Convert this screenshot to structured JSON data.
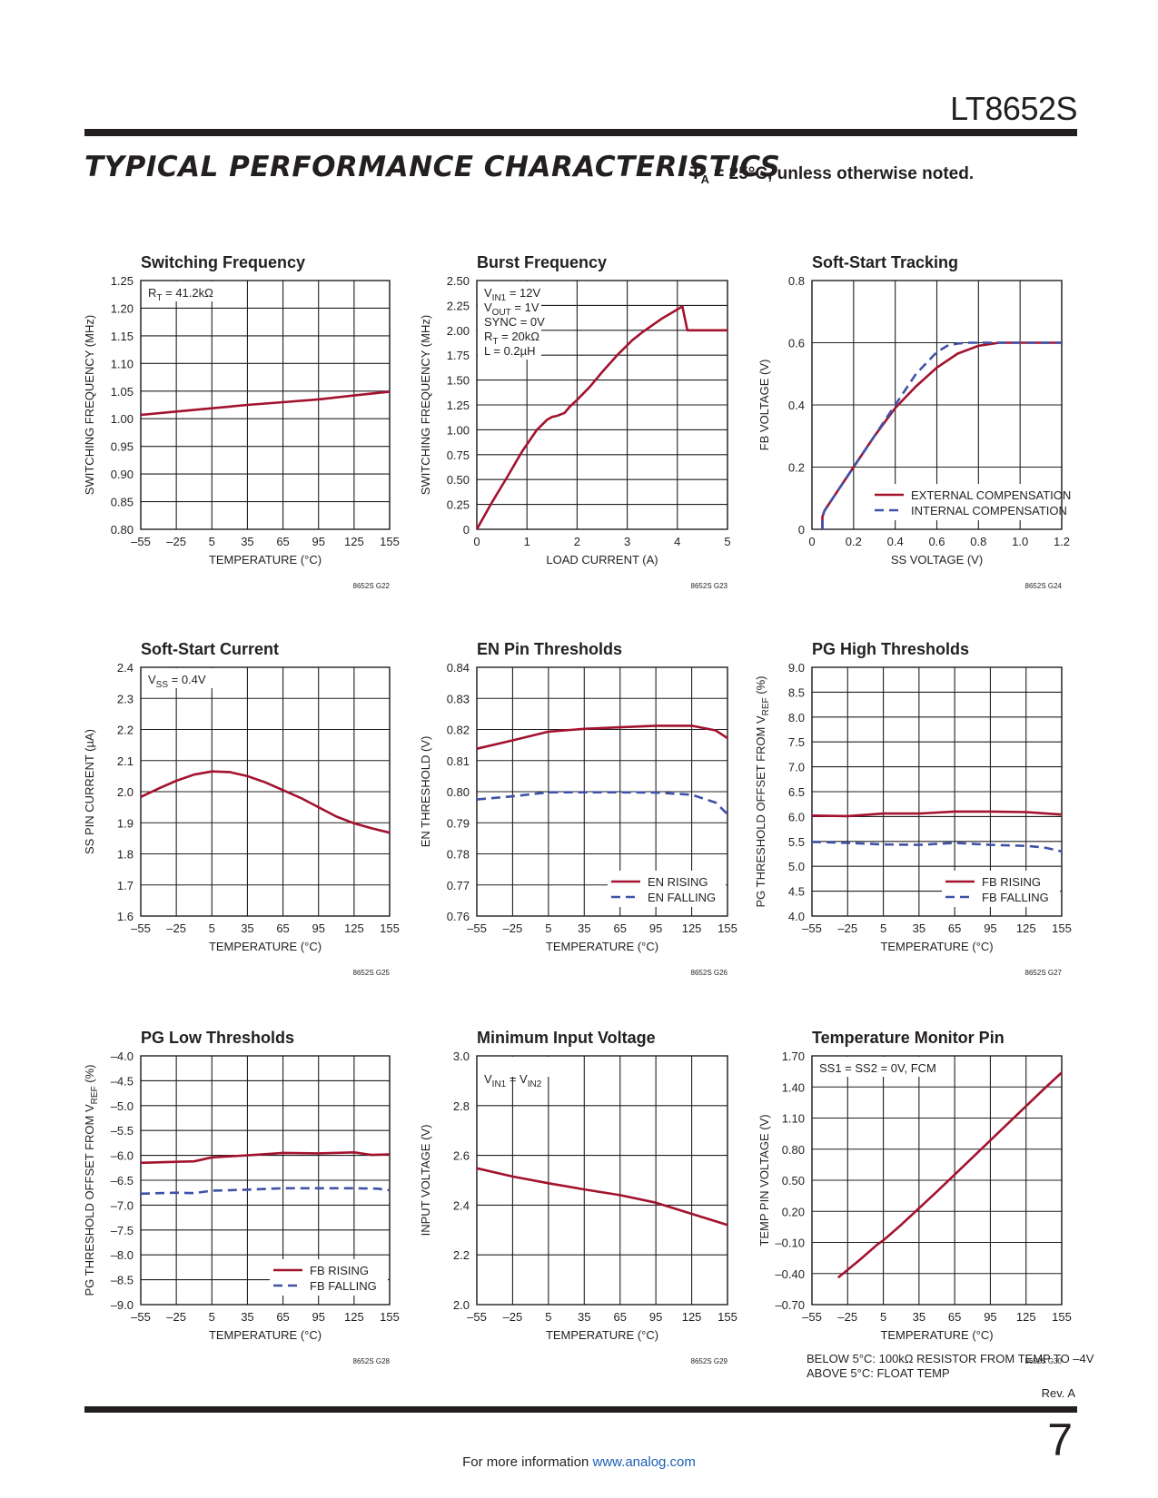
{
  "header": {
    "part_number": "LT8652S",
    "section_title": "TYPICAL PERFORMANCE CHARACTERISTICS",
    "condition_prefix": "T",
    "condition_sub": "A",
    "condition_suffix": " = 25°C, unless otherwise noted."
  },
  "footer": {
    "text": "For more information ",
    "link": "www.analog.com",
    "revision": "Rev. A",
    "page_number": "7"
  },
  "colors": {
    "rising": "#a3122e",
    "falling": "#3f51a8",
    "grid": "#231f20"
  },
  "chart_data": [
    {
      "id": "G22",
      "type": "line",
      "title": "Switching Frequency",
      "xlabel": "TEMPERATURE (°C)",
      "ylabel": "SWITCHING FREQUENCY (MHz)",
      "xlim": [
        -55,
        155
      ],
      "ylim": [
        0.8,
        1.25
      ],
      "xticks": [
        -55,
        -25,
        5,
        35,
        65,
        95,
        125,
        155
      ],
      "xtick_labels": [
        "–55",
        "–25",
        "5",
        "35",
        "65",
        "95",
        "125",
        "155"
      ],
      "yticks": [
        0.8,
        0.85,
        0.9,
        0.95,
        1.0,
        1.05,
        1.1,
        1.15,
        1.2,
        1.25
      ],
      "ytick_labels": [
        "0.80",
        "0.85",
        "0.90",
        "0.95",
        "1.00",
        "1.05",
        "1.10",
        "1.15",
        "1.20",
        "1.25"
      ],
      "code": "8652S G22",
      "annotation": [
        {
          "main": "R",
          "sub": "T",
          "rest": " = 41.2kΩ"
        }
      ],
      "series": [
        {
          "style": "solid",
          "x": [
            -55,
            -25,
            5,
            35,
            65,
            95,
            125,
            155
          ],
          "y": [
            1.007,
            1.013,
            1.019,
            1.025,
            1.03,
            1.035,
            1.042,
            1.049
          ]
        }
      ]
    },
    {
      "id": "G23",
      "type": "line",
      "title": "Burst Frequency",
      "xlabel": "LOAD CURRENT (A)",
      "ylabel": "SWITCHING FREQUENCY (MHz)",
      "xlim": [
        0,
        5
      ],
      "ylim": [
        0,
        2.5
      ],
      "xticks": [
        0,
        1,
        2,
        3,
        4,
        5
      ],
      "xtick_labels": [
        "0",
        "1",
        "2",
        "3",
        "4",
        "5"
      ],
      "yticks": [
        0,
        0.25,
        0.5,
        0.75,
        1.0,
        1.25,
        1.5,
        1.75,
        2.0,
        2.25,
        2.5
      ],
      "ytick_labels": [
        "0",
        "0.25",
        "0.50",
        "0.75",
        "1.00",
        "1.25",
        "1.50",
        "1.75",
        "2.00",
        "2.25",
        "2.50"
      ],
      "code": "8652S G23",
      "annotation": [
        {
          "main": "V",
          "sub": "IN1",
          "rest": " = 12V"
        },
        {
          "main": "V",
          "sub": "OUT",
          "rest": " = 1V"
        },
        {
          "main": "SYNC = 0V",
          "sub": "",
          "rest": ""
        },
        {
          "main": "R",
          "sub": "T",
          "rest": " = 20kΩ"
        },
        {
          "main": "L = 0.2µH",
          "sub": "",
          "rest": ""
        }
      ],
      "series": [
        {
          "style": "solid",
          "x": [
            0,
            0.3,
            0.6,
            0.9,
            1.2,
            1.4,
            1.5,
            1.6,
            1.75,
            1.85,
            2.0,
            2.25,
            2.5,
            2.8,
            3.1,
            3.3,
            3.5,
            3.7,
            3.9,
            4.1,
            4.2,
            5.0
          ],
          "y": [
            0.0,
            0.27,
            0.52,
            0.78,
            1.0,
            1.1,
            1.13,
            1.14,
            1.17,
            1.23,
            1.3,
            1.43,
            1.58,
            1.75,
            1.9,
            1.98,
            2.05,
            2.12,
            2.18,
            2.24,
            2.0,
            2.0
          ]
        }
      ]
    },
    {
      "id": "G24",
      "type": "line",
      "title": "Soft-Start Tracking",
      "xlabel": "SS VOLTAGE (V)",
      "ylabel": "FB VOLTAGE (V)",
      "xlim": [
        0,
        1.2
      ],
      "ylim": [
        0,
        0.8
      ],
      "xticks": [
        0,
        0.2,
        0.4,
        0.6,
        0.8,
        1.0,
        1.2
      ],
      "xtick_labels": [
        "0",
        "0.2",
        "0.4",
        "0.6",
        "0.8",
        "1.0",
        "1.2"
      ],
      "yticks": [
        0,
        0.2,
        0.4,
        0.6,
        0.8
      ],
      "ytick_labels": [
        "0",
        "0.2",
        "0.4",
        "0.6",
        "0.8"
      ],
      "code": "8652S G24",
      "annotation": [],
      "legend": [
        "EXTERNAL COMPENSATION",
        "INTERNAL COMPENSATION"
      ],
      "series": [
        {
          "name": "EXTERNAL COMPENSATION",
          "style": "solid",
          "x": [
            0.05,
            0.05,
            0.06,
            0.1,
            0.2,
            0.3,
            0.4,
            0.5,
            0.6,
            0.7,
            0.8,
            0.9,
            1.0,
            1.1,
            1.2
          ],
          "y": [
            0.0,
            0.04,
            0.06,
            0.1,
            0.2,
            0.3,
            0.39,
            0.46,
            0.52,
            0.565,
            0.59,
            0.6,
            0.6,
            0.6,
            0.6
          ]
        },
        {
          "name": "INTERNAL COMPENSATION",
          "style": "dashed",
          "x": [
            0.05,
            0.05,
            0.06,
            0.1,
            0.2,
            0.3,
            0.4,
            0.5,
            0.6,
            0.65,
            0.7,
            0.75,
            0.8,
            0.9,
            1.0,
            1.2
          ],
          "y": [
            0.0,
            0.04,
            0.06,
            0.1,
            0.2,
            0.3,
            0.4,
            0.5,
            0.57,
            0.59,
            0.597,
            0.6,
            0.6,
            0.6,
            0.6,
            0.6
          ]
        }
      ]
    },
    {
      "id": "G25",
      "type": "line",
      "title": "Soft-Start Current",
      "xlabel": "TEMPERATURE (°C)",
      "ylabel": "SS PIN CURRENT  (µA)",
      "xlim": [
        -55,
        155
      ],
      "ylim": [
        1.6,
        2.4
      ],
      "xticks": [
        -55,
        -25,
        5,
        35,
        65,
        95,
        125,
        155
      ],
      "xtick_labels": [
        "–55",
        "–25",
        "5",
        "35",
        "65",
        "95",
        "125",
        "155"
      ],
      "yticks": [
        1.6,
        1.7,
        1.8,
        1.9,
        2.0,
        2.1,
        2.2,
        2.3,
        2.4
      ],
      "ytick_labels": [
        "1.6",
        "1.7",
        "1.8",
        "1.9",
        "2.0",
        "2.1",
        "2.2",
        "2.3",
        "2.4"
      ],
      "code": "8652S G25",
      "annotation": [
        {
          "main": "V",
          "sub": "SS",
          "rest": " = 0.4V"
        }
      ],
      "series": [
        {
          "style": "solid",
          "x": [
            -55,
            -40,
            -25,
            -10,
            5,
            20,
            35,
            50,
            65,
            80,
            95,
            110,
            125,
            140,
            155
          ],
          "y": [
            1.983,
            2.01,
            2.035,
            2.055,
            2.065,
            2.063,
            2.05,
            2.03,
            2.005,
            1.98,
            1.95,
            1.92,
            1.898,
            1.882,
            1.868
          ]
        }
      ]
    },
    {
      "id": "G26",
      "type": "line",
      "title": "EN Pin Thresholds",
      "xlabel": "TEMPERATURE (°C)",
      "ylabel": "EN THRESHOLD (V)",
      "xlim": [
        -55,
        155
      ],
      "ylim": [
        0.76,
        0.84
      ],
      "xticks": [
        -55,
        -25,
        5,
        35,
        65,
        95,
        125,
        155
      ],
      "xtick_labels": [
        "–55",
        "–25",
        "5",
        "35",
        "65",
        "95",
        "125",
        "155"
      ],
      "yticks": [
        0.76,
        0.77,
        0.78,
        0.79,
        0.8,
        0.81,
        0.82,
        0.83,
        0.84
      ],
      "ytick_labels": [
        "0.76",
        "0.77",
        "0.78",
        "0.79",
        "0.80",
        "0.81",
        "0.82",
        "0.83",
        "0.84"
      ],
      "code": "8652S G26",
      "annotation": [],
      "legend": [
        "EN RISING",
        "EN FALLING"
      ],
      "series": [
        {
          "name": "EN RISING",
          "style": "solid",
          "x": [
            -55,
            -25,
            5,
            35,
            65,
            95,
            125,
            145,
            155
          ],
          "y": [
            0.8138,
            0.8165,
            0.8193,
            0.8202,
            0.8207,
            0.8212,
            0.8212,
            0.8197,
            0.8172
          ]
        },
        {
          "name": "EN FALLING",
          "style": "dashed",
          "x": [
            -55,
            -25,
            5,
            35,
            65,
            95,
            125,
            145,
            155
          ],
          "y": [
            0.7975,
            0.7985,
            0.7998,
            0.7998,
            0.7998,
            0.7997,
            0.799,
            0.7965,
            0.7928
          ]
        }
      ]
    },
    {
      "id": "G27",
      "type": "line",
      "title": "PG High Thresholds",
      "xlabel": "TEMPERATURE (°C)",
      "ylabel": "PG THRESHOLD OFFSET FROM  VREF (%)",
      "xlim": [
        -55,
        155
      ],
      "ylim": [
        4.0,
        9.0
      ],
      "xticks": [
        -55,
        -25,
        5,
        35,
        65,
        95,
        125,
        155
      ],
      "xtick_labels": [
        "–55",
        "–25",
        "5",
        "35",
        "65",
        "95",
        "125",
        "155"
      ],
      "yticks": [
        4.0,
        4.5,
        5.0,
        5.5,
        6.0,
        6.5,
        7.0,
        7.5,
        8.0,
        8.5,
        9.0
      ],
      "ytick_labels": [
        "4.0",
        "4.5",
        "5.0",
        "5.5",
        "6.0",
        "6.5",
        "7.0",
        "7.5",
        "8.0",
        "8.5",
        "9.0"
      ],
      "code": "8652S G27",
      "annotation": [],
      "legend": [
        "FB RISING",
        "FB FALLING"
      ],
      "series": [
        {
          "name": "FB RISING",
          "style": "solid",
          "x": [
            -55,
            -25,
            5,
            35,
            65,
            95,
            125,
            155
          ],
          "y": [
            6.02,
            6.01,
            6.06,
            6.06,
            6.1,
            6.1,
            6.09,
            6.04
          ]
        },
        {
          "name": "FB FALLING",
          "style": "dashed",
          "x": [
            -55,
            -25,
            5,
            35,
            65,
            95,
            125,
            140,
            155
          ],
          "y": [
            5.49,
            5.47,
            5.44,
            5.43,
            5.47,
            5.43,
            5.41,
            5.38,
            5.3
          ]
        }
      ]
    },
    {
      "id": "G28",
      "type": "line",
      "title": "PG Low Thresholds",
      "xlabel": "TEMPERATURE (°C)",
      "ylabel": "PG THRESHOLD OFFSET FROM  VREF (%)",
      "xlim": [
        -55,
        155
      ],
      "ylim": [
        -9.0,
        -4.0
      ],
      "xticks": [
        -55,
        -25,
        5,
        35,
        65,
        95,
        125,
        155
      ],
      "xtick_labels": [
        "–55",
        "–25",
        "5",
        "35",
        "65",
        "95",
        "125",
        "155"
      ],
      "yticks": [
        -9.0,
        -8.5,
        -8.0,
        -7.5,
        -7.0,
        -6.5,
        -6.0,
        -5.5,
        -5.0,
        -4.5,
        -4.0
      ],
      "ytick_labels": [
        "–9.0",
        "–8.5",
        "–8.0",
        "–7.5",
        "–7.0",
        "–6.5",
        "–6.0",
        "–5.5",
        "–5.0",
        "–4.5",
        "–4.0"
      ],
      "code": "8652S G28",
      "annotation": [],
      "legend": [
        "FB RISING",
        "FB FALLING"
      ],
      "series": [
        {
          "name": "FB RISING",
          "style": "solid",
          "x": [
            -55,
            -25,
            -10,
            5,
            35,
            65,
            95,
            125,
            140,
            155
          ],
          "y": [
            -6.15,
            -6.13,
            -6.12,
            -6.04,
            -6.0,
            -5.95,
            -5.96,
            -5.94,
            -5.99,
            -5.98
          ]
        },
        {
          "name": "FB FALLING",
          "style": "dashed",
          "x": [
            -55,
            -25,
            -10,
            5,
            35,
            65,
            95,
            125,
            145,
            155
          ],
          "y": [
            -6.77,
            -6.75,
            -6.76,
            -6.71,
            -6.69,
            -6.66,
            -6.66,
            -6.66,
            -6.67,
            -6.7
          ]
        }
      ]
    },
    {
      "id": "G29",
      "type": "line",
      "title": "Minimum Input Voltage",
      "xlabel": "TEMPERATURE (°C)",
      "ylabel": "INPUT VOLTAGE (V)",
      "xlim": [
        -55,
        155
      ],
      "ylim": [
        2.0,
        3.0
      ],
      "xticks": [
        -55,
        -25,
        5,
        35,
        65,
        95,
        125,
        155
      ],
      "xtick_labels": [
        "–55",
        "–25",
        "5",
        "35",
        "65",
        "95",
        "125",
        "155"
      ],
      "yticks": [
        2.0,
        2.2,
        2.4,
        2.6,
        2.8,
        3.0
      ],
      "ytick_labels": [
        "2.0",
        "2.2",
        "2.4",
        "2.6",
        "2.8",
        "3.0"
      ],
      "code": "8652S G29",
      "annotation": [
        {
          "main": "V",
          "sub": "IN1",
          "rest": " = V",
          "sub2": "IN2"
        }
      ],
      "series": [
        {
          "style": "solid",
          "x": [
            -55,
            -25,
            5,
            35,
            65,
            95,
            125,
            155
          ],
          "y": [
            2.548,
            2.515,
            2.488,
            2.463,
            2.44,
            2.41,
            2.365,
            2.32
          ]
        }
      ]
    },
    {
      "id": "G30",
      "type": "line",
      "title": "Temperature Monitor Pin",
      "xlabel": "TEMPERATURE (°C)",
      "ylabel": "TEMP PIN VOLTAGE (V)",
      "xlim": [
        -55,
        155
      ],
      "ylim": [
        -0.7,
        1.7
      ],
      "xticks": [
        -55,
        -25,
        5,
        35,
        65,
        95,
        125,
        155
      ],
      "xtick_labels": [
        "–55",
        "–25",
        "5",
        "35",
        "65",
        "95",
        "125",
        "155"
      ],
      "yticks": [
        -0.7,
        -0.4,
        -0.1,
        0.2,
        0.5,
        0.8,
        1.1,
        1.4,
        1.7
      ],
      "ytick_labels": [
        "–0.70",
        "–0.40",
        "–0.10",
        "0.20",
        "0.50",
        "0.80",
        "1.10",
        "1.40",
        "1.70"
      ],
      "code": "8652S G30",
      "annotation": [
        {
          "main": "SS1 = SS2 = 0V, FCM",
          "sub": "",
          "rest": ""
        }
      ],
      "notes": [
        "BELOW 5°C: 100kΩ RESISTOR FROM TEMP TO –4V",
        "ABOVE 5°C: FLOAT TEMP"
      ],
      "series": [
        {
          "style": "solid",
          "x": [
            -33,
            -15,
            0,
            5,
            20,
            50,
            80,
            110,
            140,
            155
          ],
          "y": [
            -0.44,
            -0.27,
            -0.12,
            -0.08,
            0.07,
            0.39,
            0.72,
            1.05,
            1.38,
            1.54
          ]
        }
      ]
    }
  ]
}
